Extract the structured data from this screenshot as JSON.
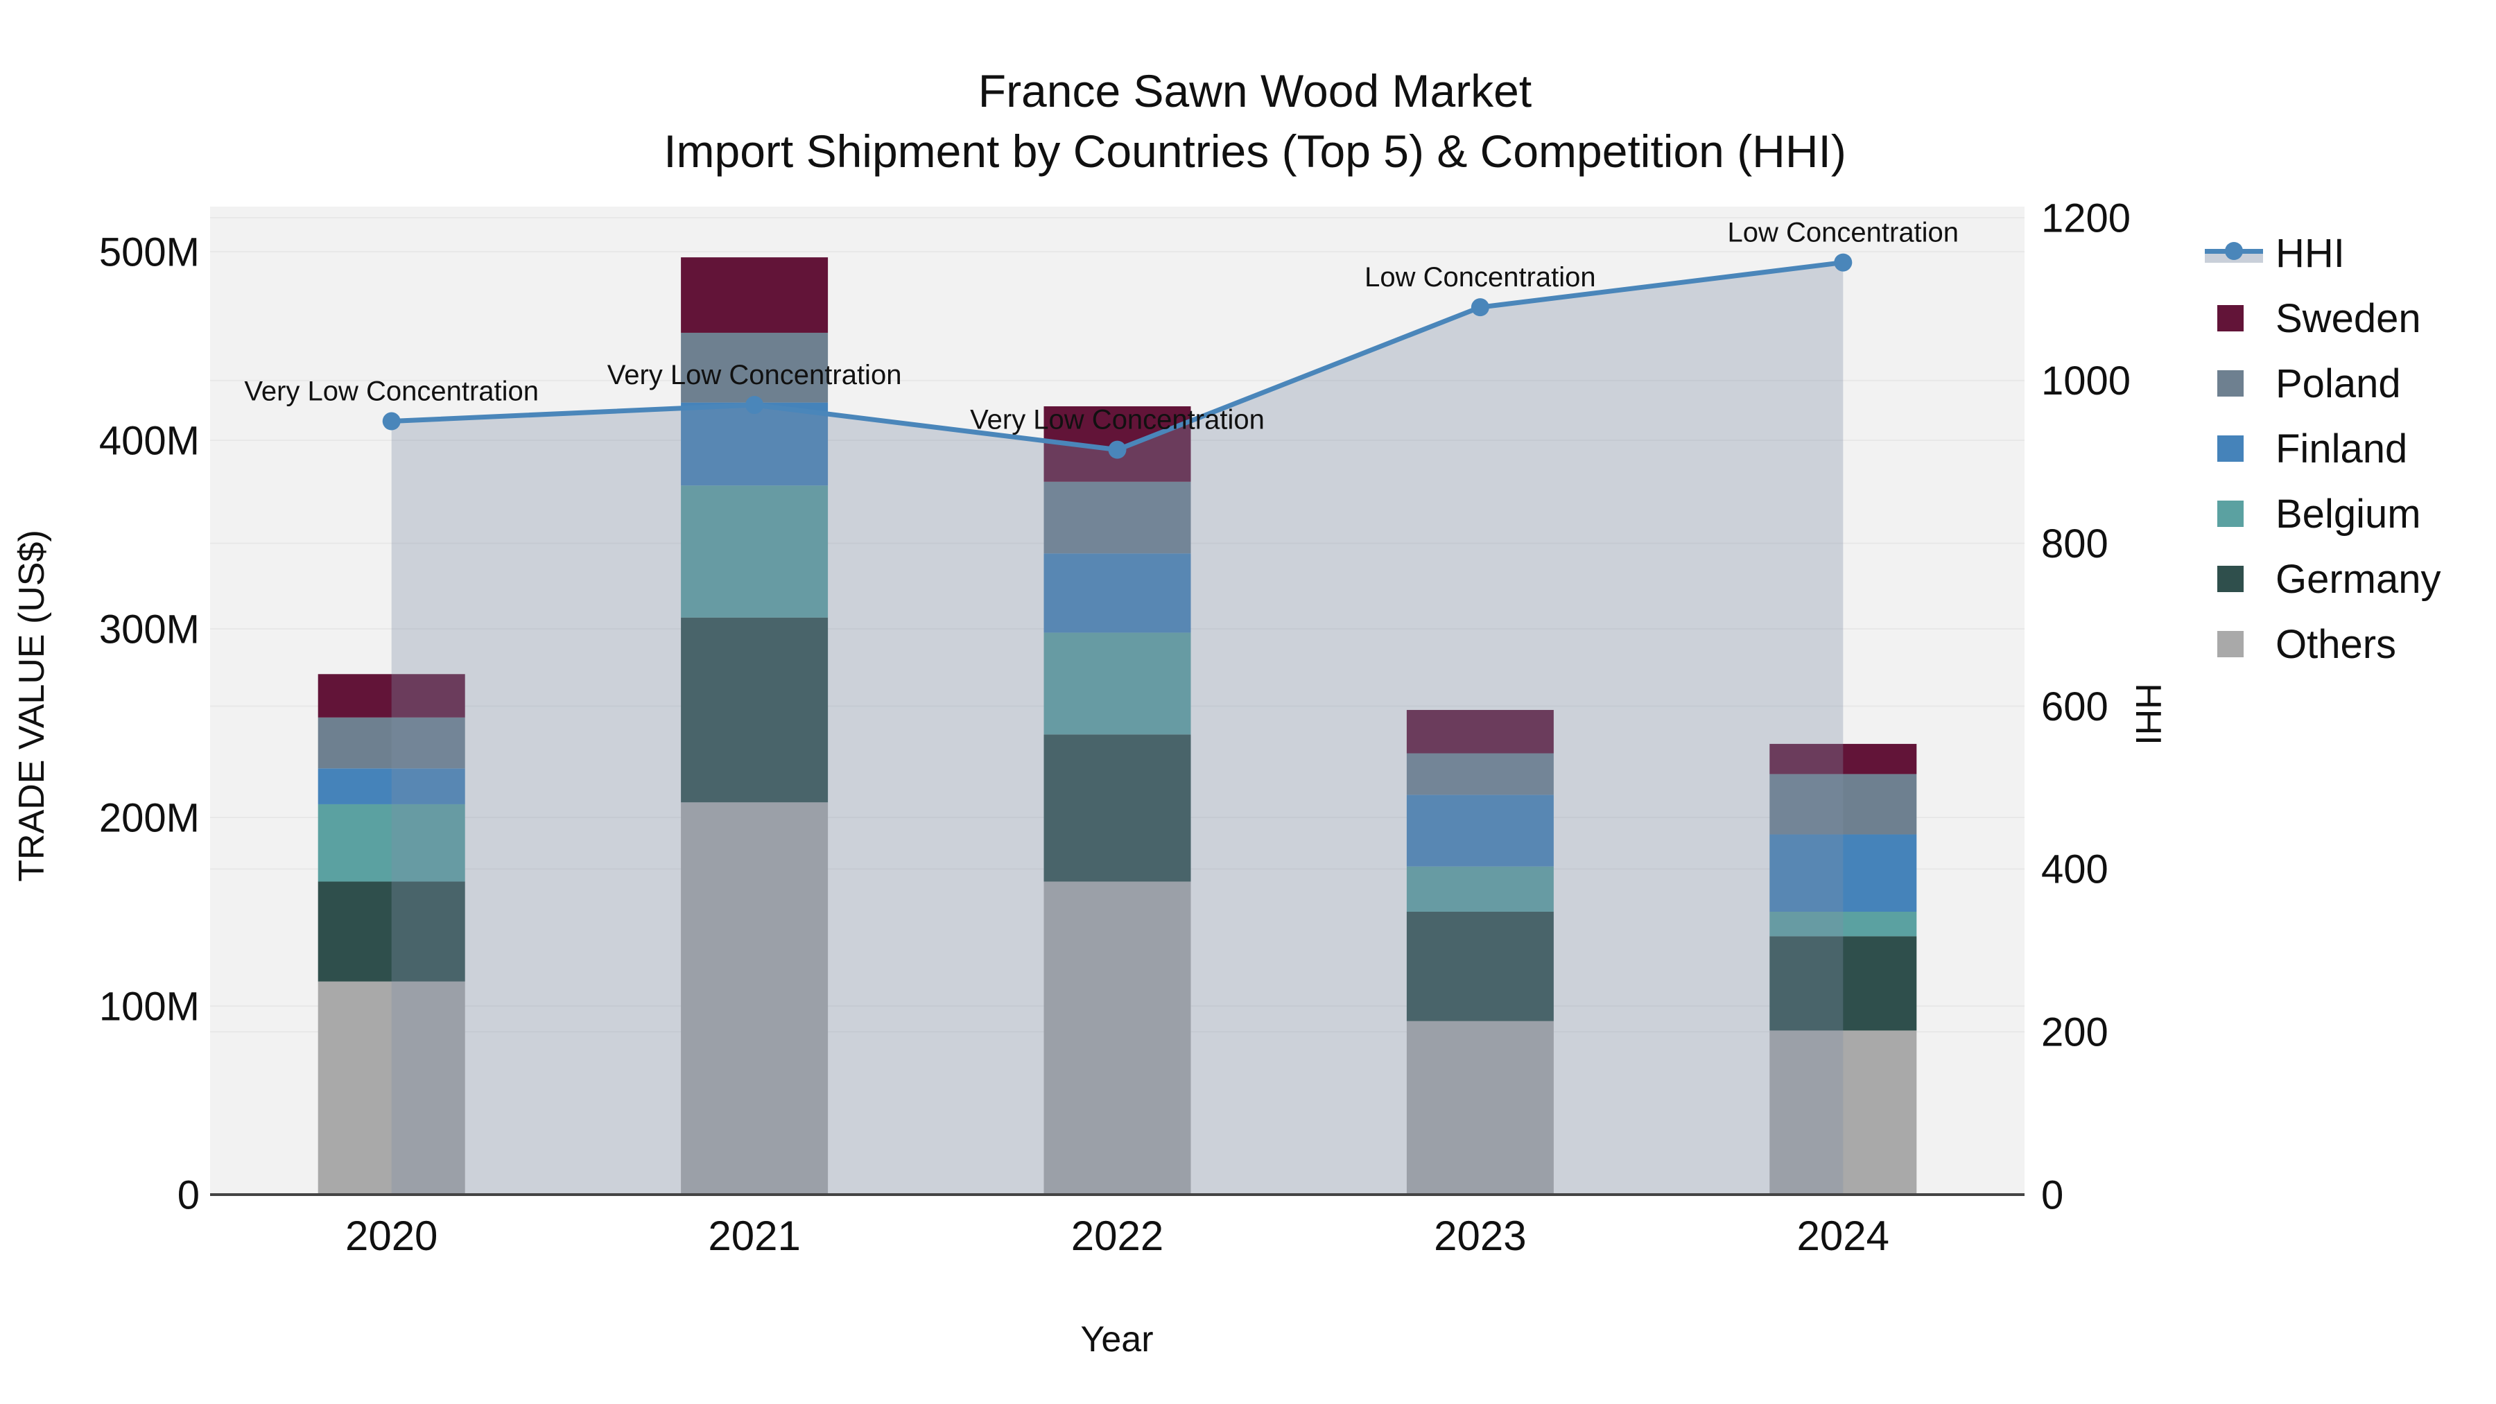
{
  "title": {
    "line1": "France Sawn Wood Market",
    "line2": "Import Shipment by Countries (Top 5) & Competition (HHI)"
  },
  "axes": {
    "x_title": "Year",
    "y_left_title": "TRADE VALUE (US$)",
    "y_right_title": "HHI",
    "y_left_tick_labels": [
      "0",
      "100M",
      "200M",
      "300M",
      "400M",
      "500M"
    ],
    "y_left_tick_values": [
      0,
      100,
      200,
      300,
      400,
      500
    ],
    "y_right_tick_labels": [
      "0",
      "200",
      "400",
      "600",
      "800",
      "1000",
      "1200"
    ],
    "y_right_tick_values": [
      0,
      200,
      400,
      600,
      800,
      1000,
      1200
    ]
  },
  "chart_data": {
    "type": "bar+line",
    "title": "France Sawn Wood Market — Import Shipment by Countries (Top 5) & Competition (HHI)",
    "categories": [
      "2020",
      "2021",
      "2022",
      "2023",
      "2024"
    ],
    "bar_unit": "M US$",
    "stack_order_bottom_to_top": [
      "Others",
      "Germany",
      "Belgium",
      "Finland",
      "Poland",
      "Sweden"
    ],
    "series": [
      {
        "name": "Sweden",
        "color": "#621438",
        "values": [
          23,
          40,
          40,
          23,
          16
        ]
      },
      {
        "name": "Poland",
        "color": "#6e8090",
        "values": [
          27,
          37,
          38,
          22,
          32
        ]
      },
      {
        "name": "Finland",
        "color": "#4583ba",
        "values": [
          19,
          44,
          42,
          38,
          41
        ]
      },
      {
        "name": "Belgium",
        "color": "#5ba1a1",
        "values": [
          41,
          70,
          54,
          24,
          13
        ]
      },
      {
        "name": "Germany",
        "color": "#2f4f4c",
        "values": [
          53,
          98,
          78,
          58,
          50
        ]
      },
      {
        "name": "Others",
        "color": "#a9a9a9",
        "values": [
          113,
          208,
          166,
          92,
          87
        ]
      }
    ],
    "bar_totals": [
      276,
      497,
      418,
      257,
      239
    ],
    "line_series": {
      "name": "HHI",
      "color": "#4a86ba",
      "area_fill": "rgba(128,144,168,0.33)",
      "values": [
        950,
        970,
        915,
        1090,
        1145
      ]
    },
    "annotations": [
      "Very Low Concentration",
      "Very Low Concentration",
      "Very Low Concentration",
      "Low Concentration",
      "Low Concentration"
    ],
    "legend_order": [
      "HHI",
      "Sweden",
      "Poland",
      "Finland",
      "Belgium",
      "Germany",
      "Others"
    ],
    "ylim_left_label": "0 – 500M",
    "ylim_right_label": "0 – 1200",
    "grid": true,
    "legend_position": "right"
  },
  "colors": {
    "plot_bg": "#f2f2f2",
    "gridline": "#e8e8e8",
    "axis_line": "#444444",
    "text": "#101010"
  }
}
